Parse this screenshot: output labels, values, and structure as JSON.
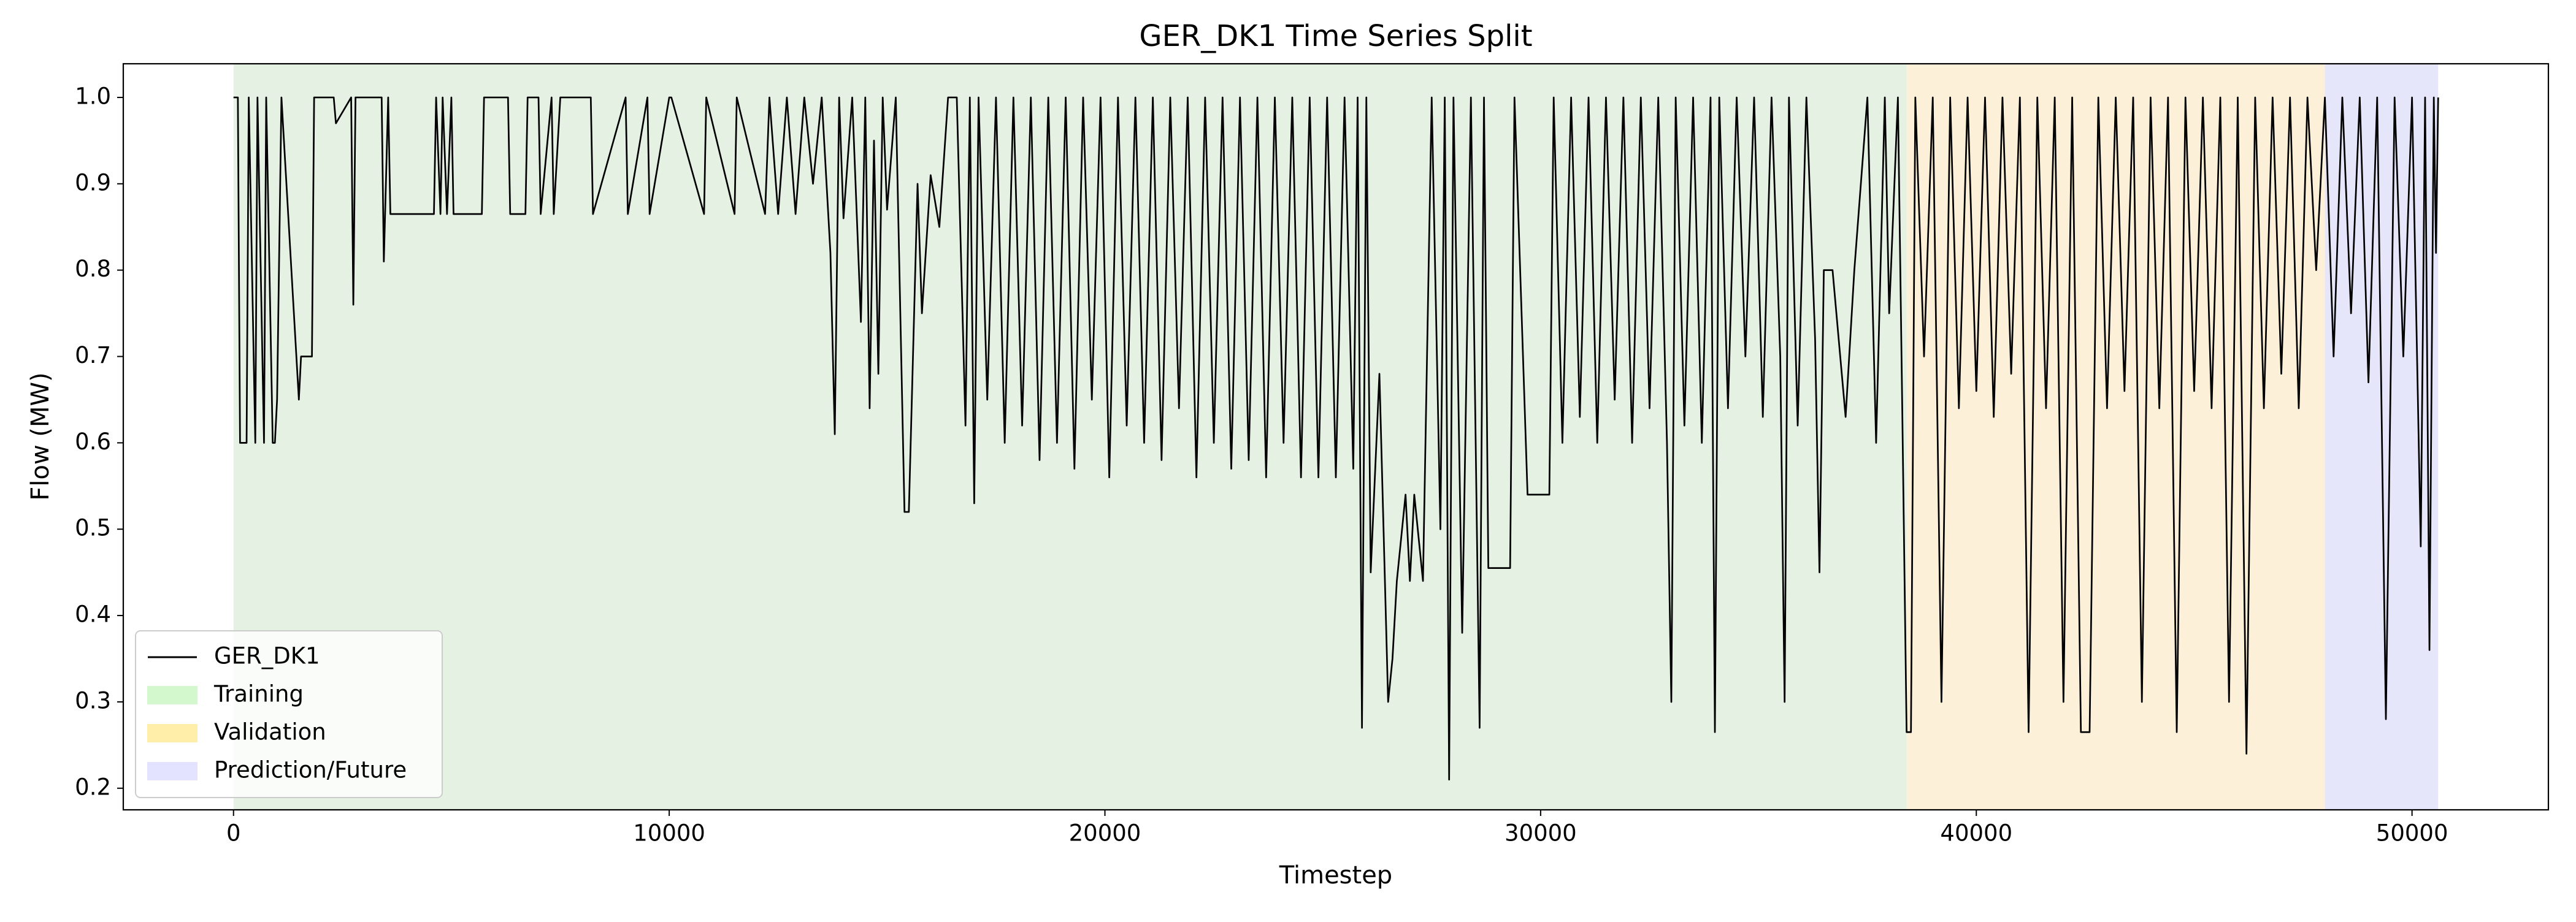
{
  "chart_data": {
    "type": "line",
    "title": "GER_DK1 Time Series Split",
    "xlabel": "Timestep",
    "ylabel": "Flow (MW)",
    "xlim": [
      -2530,
      53130
    ],
    "ylim": [
      0.175,
      1.039
    ],
    "xticks": [
      0,
      10000,
      20000,
      30000,
      40000,
      50000
    ],
    "yticks": [
      0.2,
      0.3,
      0.4,
      0.5,
      0.6,
      0.7,
      0.8,
      0.9,
      {
        "value": 1,
        "label": "1.0"
      }
    ],
    "legend": "lower left",
    "spans": [
      {
        "name": "Training",
        "start": 0,
        "end": 38400,
        "color": "#e5f1e3"
      },
      {
        "name": "Validation",
        "start": 38400,
        "end": 48000,
        "color": "#fdf0d9"
      },
      {
        "name": "Prediction/Future",
        "start": 48000,
        "end": 50600,
        "color": "#e6e6fa"
      }
    ],
    "x": [
      0,
      100,
      150,
      300,
      350,
      500,
      550,
      700,
      750,
      900,
      950,
      1000,
      1100,
      1500,
      1550,
      1800,
      1850,
      2300,
      2350,
      2700,
      2750,
      2800,
      2900,
      3400,
      3450,
      3550,
      3600,
      3650,
      4600,
      4650,
      4750,
      4800,
      4900,
      5000,
      5050,
      5700,
      5750,
      6300,
      6350,
      6700,
      6750,
      7000,
      7050,
      7300,
      7350,
      7500,
      7550,
      8200,
      8250,
      9000,
      9050,
      9500,
      9550,
      10000,
      10050,
      10800,
      10850,
      11500,
      11550,
      12200,
      12300,
      12500,
      12700,
      12900,
      13100,
      13300,
      13500,
      13700,
      13800,
      13900,
      14000,
      14200,
      14400,
      14500,
      14600,
      14700,
      14800,
      14900,
      15000,
      15200,
      15400,
      15500,
      15700,
      15800,
      16000,
      16200,
      16400,
      16600,
      16800,
      16900,
      17000,
      17100,
      17300,
      17500,
      17700,
      17900,
      18100,
      18300,
      18500,
      18700,
      18900,
      19100,
      19300,
      19500,
      19700,
      19900,
      20100,
      20300,
      20500,
      20700,
      20900,
      21100,
      21300,
      21500,
      21700,
      21900,
      22100,
      22300,
      22500,
      22700,
      22900,
      23100,
      23300,
      23500,
      23700,
      23900,
      24100,
      24300,
      24500,
      24700,
      24900,
      25100,
      25300,
      25500,
      25700,
      25800,
      25900,
      26000,
      26100,
      26300,
      26500,
      26600,
      26700,
      26900,
      27000,
      27100,
      27300,
      27500,
      27700,
      27800,
      27900,
      28000,
      28200,
      28400,
      28600,
      28700,
      28800,
      29300,
      29400,
      29700,
      30200,
      30300,
      30500,
      30700,
      30900,
      31100,
      31300,
      31500,
      31700,
      31900,
      32100,
      32300,
      32500,
      32700,
      32900,
      33000,
      33100,
      33300,
      33500,
      33700,
      33900,
      34000,
      34100,
      34300,
      34500,
      34700,
      34900,
      35100,
      35300,
      35500,
      35600,
      35700,
      35900,
      36100,
      36300,
      36400,
      36500,
      36700,
      37000,
      37200,
      37500,
      37700,
      37900,
      38000,
      38200,
      38300,
      38400,
      38500,
      38600,
      38800,
      39000,
      39200,
      39400,
      39600,
      39800,
      40000,
      40200,
      40400,
      40600,
      40800,
      41000,
      41200,
      41400,
      41600,
      41800,
      42000,
      42200,
      42400,
      42600,
      42800,
      43000,
      43200,
      43400,
      43600,
      43800,
      44000,
      44200,
      44400,
      44600,
      44800,
      45000,
      45200,
      45400,
      45600,
      45800,
      46000,
      46200,
      46400,
      46600,
      46800,
      47000,
      47200,
      47400,
      47600,
      47800,
      48000,
      48200,
      48400,
      48600,
      48800,
      49000,
      49200,
      49400,
      49600,
      49800,
      50000,
      50200,
      50300,
      50400,
      50500,
      50550,
      50600
    ],
    "series": [
      {
        "name": "GER_DK1",
        "color": "#000000",
        "values": [
          1,
          1,
          0.6,
          0.6,
          1,
          0.6,
          1,
          0.6,
          1,
          0.6,
          0.6,
          0.65,
          1,
          0.65,
          0.7,
          0.7,
          1,
          1,
          0.97,
          1,
          0.76,
          1,
          1,
          1,
          0.81,
          1,
          0.865,
          0.865,
          0.865,
          1,
          0.865,
          1,
          0.865,
          1,
          0.865,
          0.865,
          1,
          1,
          0.865,
          0.865,
          1,
          1,
          0.865,
          1,
          0.865,
          1,
          1,
          1,
          0.865,
          1,
          0.865,
          1,
          0.865,
          1,
          1,
          0.865,
          1,
          0.865,
          1,
          0.865,
          1,
          0.865,
          1,
          0.865,
          1,
          0.9,
          1,
          0.82,
          0.61,
          1,
          0.86,
          1,
          0.74,
          1,
          0.64,
          0.95,
          0.68,
          1,
          0.87,
          1,
          0.52,
          0.52,
          0.9,
          0.75,
          0.91,
          0.85,
          1,
          1,
          0.62,
          1,
          0.53,
          1,
          0.65,
          1,
          0.6,
          1,
          0.62,
          1,
          0.58,
          1,
          0.6,
          1,
          0.57,
          1,
          0.65,
          1,
          0.56,
          1,
          0.62,
          1,
          0.6,
          1,
          0.58,
          1,
          0.64,
          1,
          0.56,
          1,
          0.6,
          1,
          0.57,
          1,
          0.58,
          1,
          0.56,
          1,
          0.6,
          1,
          0.56,
          1,
          0.56,
          1,
          0.56,
          1,
          0.57,
          1,
          0.27,
          1,
          0.45,
          0.68,
          0.3,
          0.35,
          0.44,
          0.54,
          0.44,
          0.54,
          0.44,
          1,
          0.5,
          1,
          0.21,
          1,
          0.38,
          1,
          0.27,
          1,
          0.455,
          0.455,
          1,
          0.54,
          0.54,
          1,
          0.6,
          1,
          0.63,
          1,
          0.6,
          1,
          0.65,
          1,
          0.6,
          1,
          0.64,
          1,
          0.6,
          0.3,
          1,
          0.62,
          1,
          0.6,
          1,
          0.265,
          1,
          0.64,
          1,
          0.7,
          1,
          0.63,
          1,
          0.7,
          0.3,
          1,
          0.62,
          1,
          0.72,
          0.45,
          0.8,
          0.8,
          0.63,
          0.8,
          1,
          0.6,
          1,
          0.75,
          1,
          0.64,
          0.265,
          0.265,
          1,
          0.7,
          1,
          0.3,
          1,
          0.64,
          1,
          0.66,
          1,
          0.63,
          1,
          0.68,
          1,
          0.265,
          1,
          0.64,
          1,
          0.3,
          1,
          0.265,
          0.265,
          1,
          0.64,
          1,
          0.66,
          1,
          0.3,
          1,
          0.64,
          1,
          0.265,
          1,
          0.66,
          1,
          0.64,
          1,
          0.3,
          1,
          0.24,
          1,
          0.64,
          1,
          0.68,
          1,
          0.64,
          1,
          0.8,
          1,
          0.7,
          1,
          0.75,
          1,
          0.67,
          1,
          0.28,
          1,
          0.7,
          1,
          0.48,
          1,
          0.36,
          1,
          0.82,
          1
        ]
      }
    ]
  }
}
